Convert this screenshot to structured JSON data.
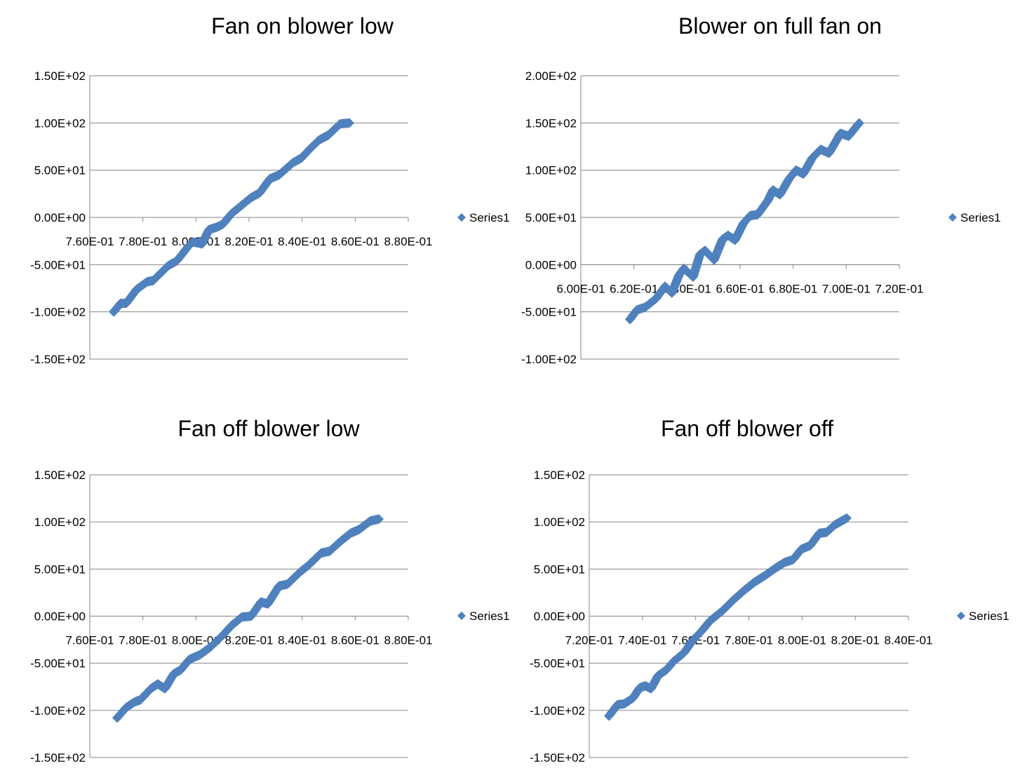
{
  "chart_data": [
    {
      "type": "scatter",
      "title": "Fan on blower low",
      "legend": "Series1",
      "legend_position": "right",
      "color": "#4f81bd",
      "marker": "diamond",
      "xlim": [
        0.76,
        0.88
      ],
      "ylim": [
        -150,
        150
      ],
      "x_ticks": [
        "7.60E-01",
        "7.80E-01",
        "8.00E-01",
        "8.20E-01",
        "8.40E-01",
        "8.60E-01",
        "8.80E-01"
      ],
      "y_ticks": [
        "1.50E+02",
        "1.00E+02",
        "5.00E+01",
        "0.00E+00",
        "-5.00E+01",
        "-1.00E+02",
        "-1.50E+02"
      ],
      "grid": true,
      "series": [
        {
          "name": "Series1",
          "points": [
            [
              0.769,
              -100
            ],
            [
              0.7716,
              -91
            ],
            [
              0.7737,
              -91
            ],
            [
              0.7777,
              -76
            ],
            [
              0.7817,
              -68
            ],
            [
              0.7838,
              -67
            ],
            [
              0.7896,
              -51
            ],
            [
              0.7928,
              -46
            ],
            [
              0.797,
              -31
            ],
            [
              0.7988,
              -26
            ],
            [
              0.8023,
              -28
            ],
            [
              0.8049,
              -13
            ],
            [
              0.8081,
              -10
            ],
            [
              0.8102,
              -7
            ],
            [
              0.8134,
              4
            ],
            [
              0.816,
              10
            ],
            [
              0.8208,
              21
            ],
            [
              0.824,
              26
            ],
            [
              0.8279,
              41
            ],
            [
              0.8313,
              45
            ],
            [
              0.8366,
              58
            ],
            [
              0.8398,
              63
            ],
            [
              0.8424,
              71
            ],
            [
              0.8464,
              82
            ],
            [
              0.8498,
              87
            ],
            [
              0.8543,
              99
            ],
            [
              0.8578,
              100
            ]
          ]
        }
      ]
    },
    {
      "type": "scatter",
      "title": "Blower on full fan on",
      "legend": "Series1",
      "legend_position": "right",
      "color": "#4f81bd",
      "marker": "diamond",
      "xlim": [
        0.6,
        0.72
      ],
      "ylim": [
        -100,
        200
      ],
      "x_ticks": [
        "6.00E-01",
        "6.20E-01",
        "6.40E-01",
        "6.60E-01",
        "6.80E-01",
        "7.00E-01",
        "7.20E-01"
      ],
      "y_ticks": [
        "2.00E+02",
        "1.50E+02",
        "1.00E+02",
        "5.00E+01",
        "0.00E+00",
        "-5.00E+01",
        "-1.00E+02"
      ],
      "grid": true,
      "series": [
        {
          "name": "Series1",
          "points": [
            [
              0.6185,
              -58
            ],
            [
              0.6211,
              -48
            ],
            [
              0.6243,
              -45
            ],
            [
              0.6283,
              -36
            ],
            [
              0.6317,
              -23
            ],
            [
              0.6343,
              -30
            ],
            [
              0.637,
              -11
            ],
            [
              0.6388,
              -4
            ],
            [
              0.6423,
              -13
            ],
            [
              0.6449,
              11
            ],
            [
              0.6468,
              15
            ],
            [
              0.6502,
              5
            ],
            [
              0.6534,
              27
            ],
            [
              0.6555,
              31
            ],
            [
              0.6581,
              26
            ],
            [
              0.6613,
              44
            ],
            [
              0.6639,
              52
            ],
            [
              0.6666,
              53
            ],
            [
              0.6705,
              68
            ],
            [
              0.6724,
              79
            ],
            [
              0.675,
              74
            ],
            [
              0.6785,
              91
            ],
            [
              0.6811,
              100
            ],
            [
              0.6838,
              96
            ],
            [
              0.6872,
              113
            ],
            [
              0.6904,
              122
            ],
            [
              0.6935,
              118
            ],
            [
              0.6962,
              131
            ],
            [
              0.6978,
              139
            ],
            [
              0.7009,
              136
            ],
            [
              0.7049,
              150
            ]
          ]
        }
      ]
    },
    {
      "type": "scatter",
      "title": "Fan off blower low",
      "legend": "Series1",
      "legend_position": "right",
      "color": "#4f81bd",
      "marker": "diamond",
      "xlim": [
        0.76,
        0.88
      ],
      "ylim": [
        -150,
        150
      ],
      "x_ticks": [
        "7.60E-01",
        "7.80E-01",
        "8.00E-01",
        "8.20E-01",
        "8.40E-01",
        "8.60E-01",
        "8.80E-01"
      ],
      "y_ticks": [
        "1.50E+02",
        "1.00E+02",
        "5.00E+01",
        "0.00E+00",
        "-5.00E+01",
        "-1.00E+02",
        "-1.50E+02"
      ],
      "grid": true,
      "series": [
        {
          "name": "Series1",
          "points": [
            [
              0.7703,
              -108
            ],
            [
              0.7737,
              -97
            ],
            [
              0.7769,
              -91
            ],
            [
              0.779,
              -89
            ],
            [
              0.783,
              -77
            ],
            [
              0.7856,
              -72
            ],
            [
              0.7883,
              -77
            ],
            [
              0.7917,
              -61
            ],
            [
              0.7943,
              -57
            ],
            [
              0.7975,
              -46
            ],
            [
              0.8015,
              -41
            ],
            [
              0.8054,
              -33
            ],
            [
              0.8102,
              -20
            ],
            [
              0.8134,
              -10
            ],
            [
              0.8173,
              -1
            ],
            [
              0.8208,
              0
            ],
            [
              0.8245,
              15
            ],
            [
              0.8271,
              13
            ],
            [
              0.8313,
              32
            ],
            [
              0.8345,
              34
            ],
            [
              0.8393,
              47
            ],
            [
              0.8424,
              54
            ],
            [
              0.8472,
              67
            ],
            [
              0.8504,
              69
            ],
            [
              0.8543,
              79
            ],
            [
              0.8583,
              88
            ],
            [
              0.8615,
              92
            ],
            [
              0.8657,
              101
            ],
            [
              0.8689,
              103
            ]
          ]
        }
      ]
    },
    {
      "type": "scatter",
      "title": "Fan off blower off",
      "legend": "Series1",
      "legend_position": "right",
      "color": "#4f81bd",
      "marker": "diamond",
      "xlim": [
        0.72,
        0.84
      ],
      "ylim": [
        -150,
        150
      ],
      "x_ticks": [
        "7.20E-01",
        "7.40E-01",
        "7.60E-01",
        "7.80E-01",
        "8.00E-01",
        "8.20E-01",
        "8.40E-01"
      ],
      "y_ticks": [
        "1.50E+02",
        "1.00E+02",
        "5.00E+01",
        "0.00E+00",
        "-5.00E+01",
        "-1.00E+02",
        "-1.50E+02"
      ],
      "grid": true,
      "series": [
        {
          "name": "Series1",
          "points": [
            [
              0.7274,
              -106
            ],
            [
              0.7306,
              -94
            ],
            [
              0.7332,
              -93
            ],
            [
              0.7364,
              -87
            ],
            [
              0.739,
              -76
            ],
            [
              0.7411,
              -74
            ],
            [
              0.7432,
              -77
            ],
            [
              0.7459,
              -63
            ],
            [
              0.749,
              -57
            ],
            [
              0.7517,
              -48
            ],
            [
              0.7556,
              -39
            ],
            [
              0.7591,
              -25
            ],
            [
              0.7622,
              -16
            ],
            [
              0.7654,
              -5
            ],
            [
              0.7702,
              6
            ],
            [
              0.7741,
              17
            ],
            [
              0.7781,
              27
            ],
            [
              0.7821,
              36
            ],
            [
              0.786,
              43
            ],
            [
              0.79,
              51
            ],
            [
              0.7934,
              57
            ],
            [
              0.7966,
              60
            ],
            [
              0.7997,
              71
            ],
            [
              0.8031,
              75
            ],
            [
              0.8065,
              88
            ],
            [
              0.8092,
              89
            ],
            [
              0.8124,
              97
            ],
            [
              0.8168,
              104
            ]
          ]
        }
      ]
    }
  ]
}
